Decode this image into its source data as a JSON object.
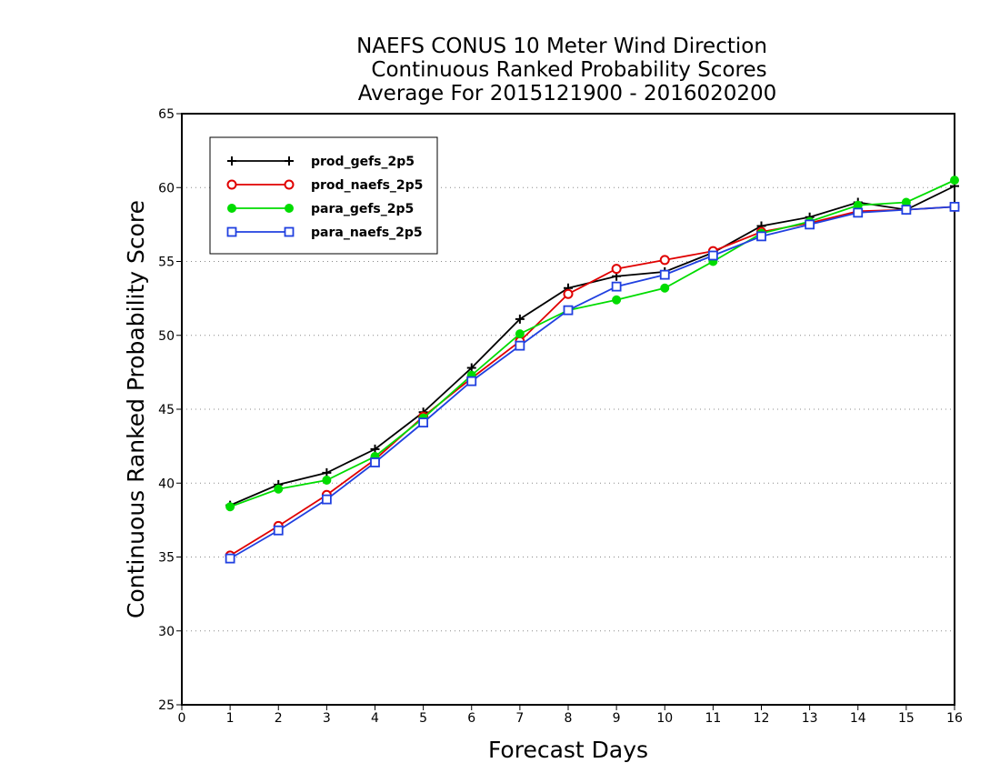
{
  "chart_data": {
    "type": "line",
    "title_lines": [
      "NAEFS CONUS 10 Meter Wind Direction",
      "Continuous Ranked Probability Scores",
      "Average For 2015121900 - 2016020200"
    ],
    "xlabel": "Forecast Days",
    "ylabel": "Continuous Ranked Probability Score",
    "xlim": [
      0,
      16
    ],
    "ylim": [
      25,
      65
    ],
    "xticks": [
      "0",
      "1",
      "2",
      "3",
      "4",
      "5",
      "6",
      "7",
      "8",
      "9",
      "10",
      "11",
      "12",
      "13",
      "14",
      "15",
      "16"
    ],
    "yticks": [
      "25",
      "30",
      "35",
      "40",
      "45",
      "50",
      "55",
      "60",
      "65"
    ],
    "grid": "horizontal dotted",
    "legend_position": "top-left",
    "x": [
      1,
      2,
      3,
      4,
      5,
      6,
      7,
      8,
      9,
      10,
      11,
      12,
      13,
      14,
      15,
      16
    ],
    "series": [
      {
        "name": "prod_gefs_2p5",
        "color": "#000000",
        "marker": "plus",
        "values": [
          38.5,
          39.9,
          40.7,
          42.3,
          44.8,
          47.8,
          51.1,
          53.2,
          54.0,
          54.3,
          55.6,
          57.4,
          58.0,
          59.0,
          58.5,
          60.1
        ]
      },
      {
        "name": "prod_naefs_2p5",
        "color": "#e00000",
        "marker": "open-circle",
        "values": [
          35.1,
          37.1,
          39.2,
          41.6,
          44.5,
          47.1,
          49.6,
          52.8,
          54.5,
          55.1,
          55.7,
          57.0,
          57.6,
          58.4,
          58.5,
          58.7
        ]
      },
      {
        "name": "para_gefs_2p5",
        "color": "#00dc00",
        "marker": "filled-circle",
        "values": [
          38.4,
          39.6,
          40.2,
          41.8,
          44.4,
          47.3,
          50.1,
          51.7,
          52.4,
          53.2,
          55.0,
          56.9,
          57.7,
          58.8,
          59.0,
          60.5
        ]
      },
      {
        "name": "para_naefs_2p5",
        "color": "#2040e0",
        "marker": "open-square",
        "values": [
          34.9,
          36.8,
          38.9,
          41.4,
          44.1,
          46.9,
          49.3,
          51.7,
          53.3,
          54.1,
          55.4,
          56.7,
          57.5,
          58.3,
          58.5,
          58.7
        ]
      }
    ]
  }
}
